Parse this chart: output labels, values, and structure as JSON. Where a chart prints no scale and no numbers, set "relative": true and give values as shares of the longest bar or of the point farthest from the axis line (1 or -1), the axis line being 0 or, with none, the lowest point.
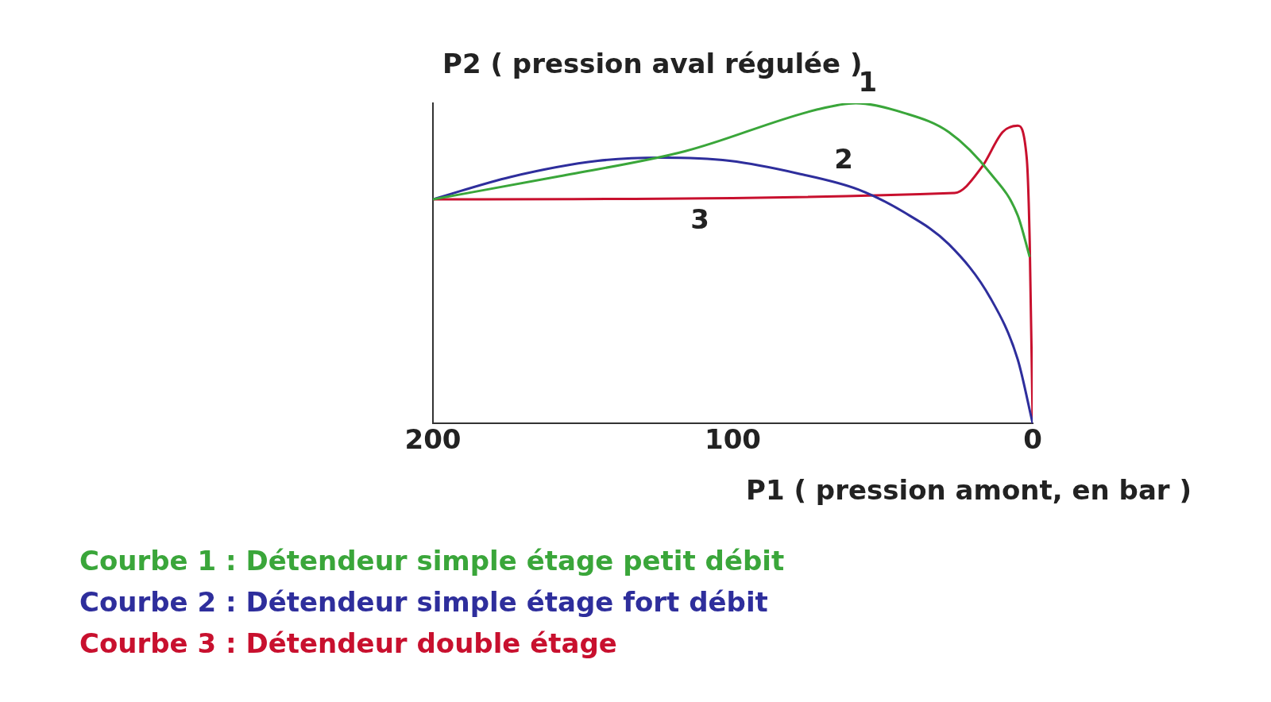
{
  "chart_data": {
    "type": "line",
    "relative": true,
    "ylabel": "P2 ( pression aval régulée )",
    "xlabel": "P1 ( pression amont, en bar )",
    "xlim": [
      200,
      0
    ],
    "xticks": [
      200,
      100,
      0
    ],
    "grid": false,
    "marker": "none",
    "line_style": "solid",
    "legend": "bottom left",
    "series": [
      {
        "name": "Courbe 1 : Détendeur simple étage petit débit",
        "color": "#3aa63a",
        "x": [
          200,
          159,
          116,
          72,
          59,
          43,
          28,
          14,
          5,
          1
        ],
        "values": [
          0.7,
          0.77,
          0.85,
          0.98,
          1.0,
          0.97,
          0.91,
          0.78,
          0.65,
          0.52
        ]
      },
      {
        "name": "Courbe 2 : Détendeur simple étage fort débit",
        "color": "#2e2e9c",
        "x": [
          200,
          174,
          145,
          124,
          101,
          78,
          58,
          43,
          28,
          14,
          5,
          0
        ],
        "values": [
          0.7,
          0.77,
          0.82,
          0.83,
          0.82,
          0.78,
          0.73,
          0.66,
          0.56,
          0.39,
          0.2,
          0
        ]
      },
      {
        "name": "Courbe 3 : Détendeur double étage",
        "color": "#c8102e",
        "x": [
          200,
          26,
          17,
          10,
          5,
          2,
          1,
          0
        ],
        "values": [
          0.7,
          0.72,
          0.8,
          0.91,
          0.93,
          0.83,
          0.57,
          0
        ]
      }
    ],
    "annotations": [
      {
        "text": "1",
        "x": 55,
        "y": 0.99
      },
      {
        "text": "2",
        "x": 63,
        "y": 0.75
      },
      {
        "text": "3",
        "x": 111,
        "y": 0.7
      }
    ]
  }
}
